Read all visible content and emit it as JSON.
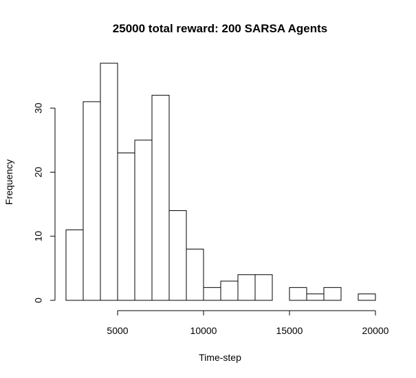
{
  "chart_data": {
    "type": "bar",
    "title": "25000 total reward: 200 SARSA Agents",
    "xlabel": "Time-step",
    "ylabel": "Frequency",
    "bins": [
      {
        "start": 2000,
        "end": 3000,
        "value": 11
      },
      {
        "start": 3000,
        "end": 4000,
        "value": 31
      },
      {
        "start": 4000,
        "end": 5000,
        "value": 37
      },
      {
        "start": 5000,
        "end": 6000,
        "value": 23
      },
      {
        "start": 6000,
        "end": 7000,
        "value": 25
      },
      {
        "start": 7000,
        "end": 8000,
        "value": 32
      },
      {
        "start": 8000,
        "end": 9000,
        "value": 14
      },
      {
        "start": 9000,
        "end": 10000,
        "value": 8
      },
      {
        "start": 10000,
        "end": 11000,
        "value": 2
      },
      {
        "start": 11000,
        "end": 12000,
        "value": 3
      },
      {
        "start": 12000,
        "end": 13000,
        "value": 4
      },
      {
        "start": 13000,
        "end": 14000,
        "value": 4
      },
      {
        "start": 14000,
        "end": 15000,
        "value": 0
      },
      {
        "start": 15000,
        "end": 16000,
        "value": 2
      },
      {
        "start": 16000,
        "end": 17000,
        "value": 1
      },
      {
        "start": 17000,
        "end": 18000,
        "value": 2
      },
      {
        "start": 18000,
        "end": 19000,
        "value": 0
      },
      {
        "start": 19000,
        "end": 20000,
        "value": 1
      }
    ],
    "xlim": [
      2000,
      20000
    ],
    "ylim": [
      0,
      37
    ],
    "x_ticks": [
      5000,
      10000,
      15000,
      20000
    ],
    "y_ticks": [
      0,
      10,
      20,
      30
    ],
    "grid": false,
    "colors": {
      "bar_fill": "#ffffff",
      "bar_stroke": "#000000",
      "axis": "#000000",
      "text": "#000000"
    }
  }
}
